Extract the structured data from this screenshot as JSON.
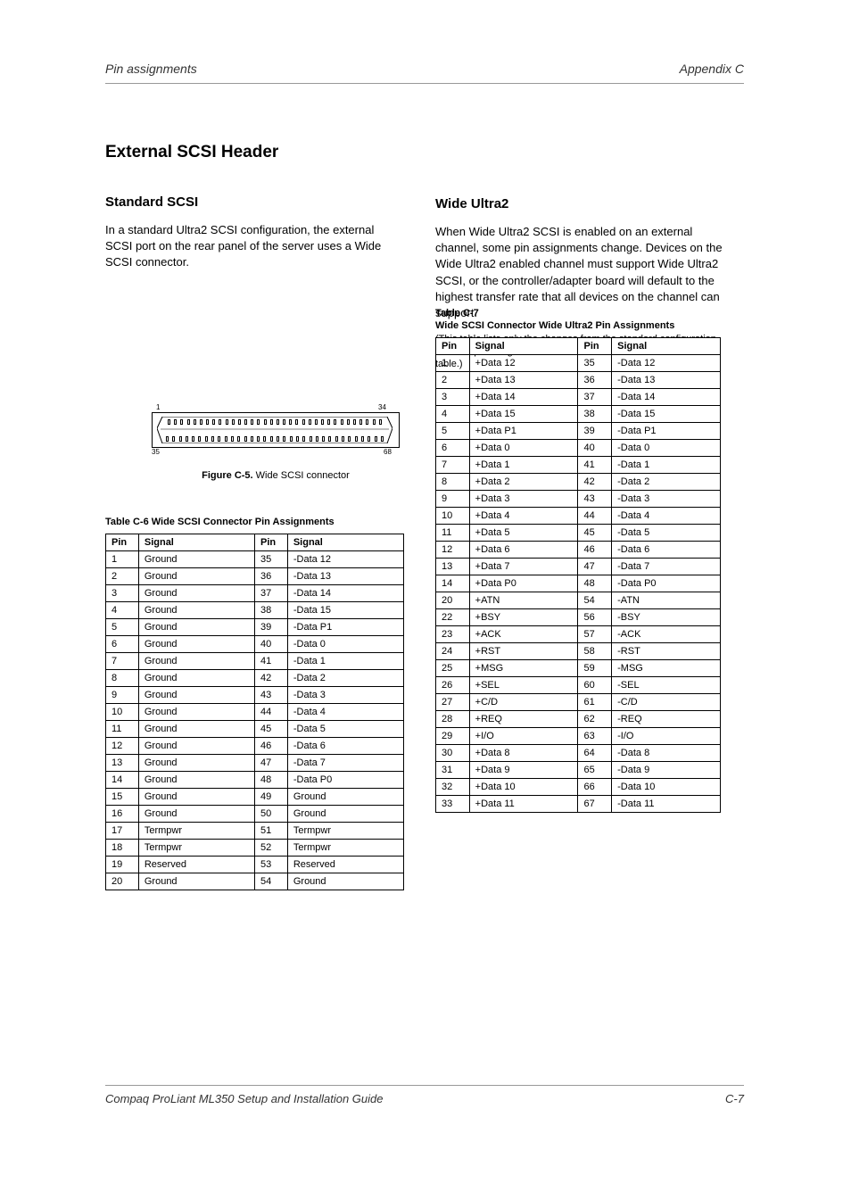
{
  "header": {
    "left": "Pin assignments",
    "right": "Appendix C"
  },
  "footer": {
    "left": "Compaq ProLiant ML350 Setup and Installation Guide",
    "right": "C-7"
  },
  "section": {
    "title": "External SCSI Header",
    "sub_title": "Standard SCSI",
    "para1": "In a standard Ultra2 SCSI configuration, the external SCSI port on the rear panel of the server uses a Wide SCSI connector.",
    "para2_title": "Wide Ultra2",
    "para2": "When Wide Ultra2 SCSI is enabled on an external channel, some pin assignments change. Devices on the Wide Ultra2 enabled channel must support Wide Ultra2 SCSI, or the controller/adapter board will default to the highest transfer rate that all devices on the channel can support."
  },
  "connector": {
    "pin1": "1",
    "pin34": "34",
    "pin35": "35",
    "pin68": "68",
    "caption_bold": "Figure C-5.",
    "caption_rest": " Wide SCSI connector"
  },
  "table_left": {
    "caption": "Table C-6  Wide SCSI Connector Pin Assignments",
    "headers": {
      "pin": "Pin",
      "signal": "Signal"
    },
    "rows": [
      [
        "1",
        "Ground",
        "35",
        "-Data 12"
      ],
      [
        "2",
        "Ground",
        "36",
        "-Data 13"
      ],
      [
        "3",
        "Ground",
        "37",
        "-Data 14"
      ],
      [
        "4",
        "Ground",
        "38",
        "-Data 15"
      ],
      [
        "5",
        "Ground",
        "39",
        "-Data P1"
      ],
      [
        "6",
        "Ground",
        "40",
        "-Data 0"
      ],
      [
        "7",
        "Ground",
        "41",
        "-Data 1"
      ],
      [
        "8",
        "Ground",
        "42",
        "-Data 2"
      ],
      [
        "9",
        "Ground",
        "43",
        "-Data 3"
      ],
      [
        "10",
        "Ground",
        "44",
        "-Data 4"
      ],
      [
        "11",
        "Ground",
        "45",
        "-Data 5"
      ],
      [
        "12",
        "Ground",
        "46",
        "-Data 6"
      ],
      [
        "13",
        "Ground",
        "47",
        "-Data 7"
      ],
      [
        "14",
        "Ground",
        "48",
        "-Data P0"
      ],
      [
        "15",
        "Ground",
        "49",
        "Ground"
      ],
      [
        "16",
        "Ground",
        "50",
        "Ground"
      ],
      [
        "17",
        "Termpwr",
        "51",
        "Termpwr"
      ],
      [
        "18",
        "Termpwr",
        "52",
        "Termpwr"
      ],
      [
        "19",
        "Reserved",
        "53",
        "Reserved"
      ],
      [
        "20",
        "Ground",
        "54",
        "Ground"
      ]
    ]
  },
  "table_right": {
    "caption_bold": "Table C-7",
    "caption_text": "Wide SCSI Connector Wide Ultra2 Pin Assignments",
    "caption_note": "(This table lists only the changes from the standard configuration. All other pin assignments are the same as in the Standard SCSI table.)",
    "headers": {
      "pin": "Pin",
      "signal": "Signal"
    },
    "rows": [
      [
        "1",
        "+Data 12",
        "35",
        "-Data 12"
      ],
      [
        "2",
        "+Data 13",
        "36",
        "-Data 13"
      ],
      [
        "3",
        "+Data 14",
        "37",
        "-Data 14"
      ],
      [
        "4",
        "+Data 15",
        "38",
        "-Data 15"
      ],
      [
        "5",
        "+Data P1",
        "39",
        "-Data P1"
      ],
      [
        "6",
        "+Data 0",
        "40",
        "-Data 0"
      ],
      [
        "7",
        "+Data 1",
        "41",
        "-Data 1"
      ],
      [
        "8",
        "+Data 2",
        "42",
        "-Data 2"
      ],
      [
        "9",
        "+Data 3",
        "43",
        "-Data 3"
      ],
      [
        "10",
        "+Data 4",
        "44",
        "-Data 4"
      ],
      [
        "11",
        "+Data 5",
        "45",
        "-Data 5"
      ],
      [
        "12",
        "+Data 6",
        "46",
        "-Data 6"
      ],
      [
        "13",
        "+Data 7",
        "47",
        "-Data 7"
      ],
      [
        "14",
        "+Data P0",
        "48",
        "-Data P0"
      ],
      [
        "20",
        "+ATN",
        "54",
        "-ATN"
      ],
      [
        "22",
        "+BSY",
        "56",
        "-BSY"
      ],
      [
        "23",
        "+ACK",
        "57",
        "-ACK"
      ],
      [
        "24",
        "+RST",
        "58",
        "-RST"
      ],
      [
        "25",
        "+MSG",
        "59",
        "-MSG"
      ],
      [
        "26",
        "+SEL",
        "60",
        "-SEL"
      ],
      [
        "27",
        "+C/D",
        "61",
        "-C/D"
      ],
      [
        "28",
        "+REQ",
        "62",
        "-REQ"
      ],
      [
        "29",
        "+I/O",
        "63",
        "-I/O"
      ],
      [
        "30",
        "+Data 8",
        "64",
        "-Data 8"
      ],
      [
        "31",
        "+Data 9",
        "65",
        "-Data 9"
      ],
      [
        "32",
        "+Data 10",
        "66",
        "-Data 10"
      ],
      [
        "33",
        "+Data 11",
        "67",
        "-Data 11"
      ]
    ]
  }
}
